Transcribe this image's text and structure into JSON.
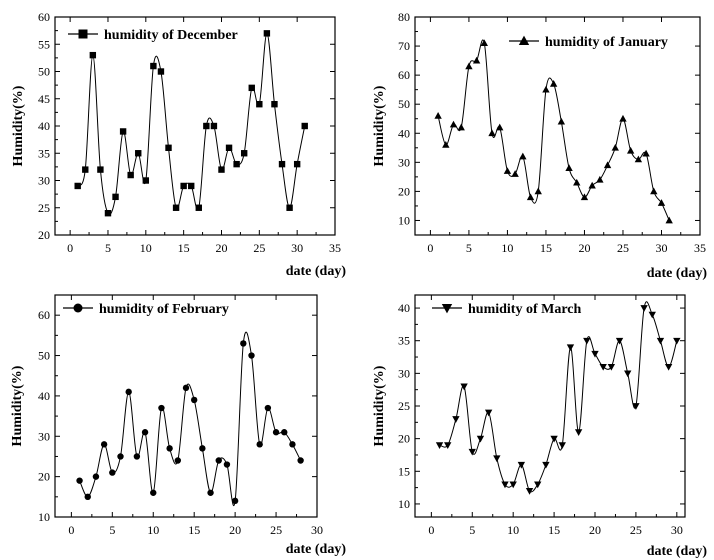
{
  "chart_data": [
    {
      "type": "line",
      "marker": "square",
      "legend_position": "top-left",
      "xlabel": "date (day)",
      "ylabel": "Humidity(%)",
      "xlim": [
        -2,
        35
      ],
      "ylim": [
        20,
        60
      ],
      "xticks": [
        0,
        5,
        10,
        15,
        20,
        25,
        30,
        35
      ],
      "yticks": [
        20,
        25,
        30,
        35,
        40,
        45,
        50,
        55,
        60
      ],
      "series": [
        {
          "name": "humidity of December",
          "x": [
            1,
            2,
            3,
            4,
            5,
            6,
            7,
            8,
            9,
            10,
            11,
            12,
            13,
            14,
            15,
            16,
            17,
            18,
            19,
            20,
            21,
            22,
            23,
            24,
            25,
            26,
            27,
            28,
            29,
            30,
            31
          ],
          "y": [
            29,
            32,
            53,
            32,
            24,
            27,
            39,
            31,
            35,
            30,
            51,
            50,
            36,
            25,
            29,
            29,
            25,
            40,
            40,
            32,
            36,
            33,
            35,
            47,
            44,
            57,
            44,
            33,
            25,
            33,
            40
          ]
        }
      ]
    },
    {
      "type": "line",
      "marker": "triangle-up",
      "legend_position": "top-right",
      "xlabel": "date (day)",
      "ylabel": "Humidity(%)",
      "xlim": [
        -2,
        35
      ],
      "ylim": [
        5,
        80
      ],
      "xticks": [
        0,
        5,
        10,
        15,
        20,
        25,
        30,
        35
      ],
      "yticks": [
        10,
        20,
        30,
        40,
        50,
        60,
        70,
        80
      ],
      "series": [
        {
          "name": "humidity of January",
          "x": [
            1,
            2,
            3,
            4,
            5,
            6,
            7,
            8,
            9,
            10,
            11,
            12,
            13,
            14,
            15,
            16,
            17,
            18,
            19,
            20,
            21,
            22,
            23,
            24,
            25,
            26,
            27,
            28,
            29,
            30,
            31
          ],
          "y": [
            46,
            36,
            43,
            42,
            63,
            65,
            71,
            40,
            42,
            27,
            26,
            32,
            18,
            20,
            55,
            57,
            44,
            28,
            23,
            18,
            22,
            24,
            29,
            35,
            45,
            34,
            31,
            33,
            20,
            16,
            10
          ]
        }
      ]
    },
    {
      "type": "line",
      "marker": "circle",
      "legend_position": "top-left",
      "xlabel": "date (day)",
      "ylabel": "Humidity(%)",
      "xlim": [
        -2,
        30
      ],
      "ylim": [
        10,
        65
      ],
      "xticks": [
        0,
        5,
        10,
        15,
        20,
        25,
        30
      ],
      "yticks": [
        10,
        20,
        30,
        40,
        50,
        60
      ],
      "series": [
        {
          "name": "humidity of February",
          "x": [
            1,
            2,
            3,
            4,
            5,
            6,
            7,
            8,
            9,
            10,
            11,
            12,
            13,
            14,
            15,
            16,
            17,
            18,
            19,
            20,
            21,
            22,
            23,
            24,
            25,
            26,
            27,
            28
          ],
          "y": [
            19,
            15,
            20,
            28,
            21,
            25,
            41,
            25,
            31,
            16,
            37,
            27,
            24,
            42,
            39,
            27,
            16,
            24,
            23,
            14,
            53,
            50,
            28,
            37,
            31,
            31,
            28,
            24
          ]
        }
      ]
    },
    {
      "type": "line",
      "marker": "triangle-down",
      "legend_position": "top-left",
      "xlabel": "date (day)",
      "ylabel": "Humidity(%)",
      "xlim": [
        -2,
        31
      ],
      "ylim": [
        8,
        42
      ],
      "xticks": [
        0,
        5,
        10,
        15,
        20,
        25,
        30
      ],
      "yticks": [
        10,
        15,
        20,
        25,
        30,
        35,
        40
      ],
      "series": [
        {
          "name": "humidity of March",
          "x": [
            1,
            2,
            3,
            4,
            5,
            6,
            7,
            8,
            9,
            10,
            11,
            12,
            13,
            14,
            15,
            16,
            17,
            18,
            19,
            20,
            21,
            22,
            23,
            24,
            25,
            26,
            27,
            28,
            29,
            30
          ],
          "y": [
            19,
            19,
            23,
            28,
            18,
            20,
            24,
            17,
            13,
            13,
            16,
            12,
            13,
            16,
            20,
            19,
            34,
            21,
            35,
            33,
            31,
            31,
            35,
            30,
            25,
            40,
            39,
            35,
            31,
            35
          ]
        }
      ]
    }
  ]
}
